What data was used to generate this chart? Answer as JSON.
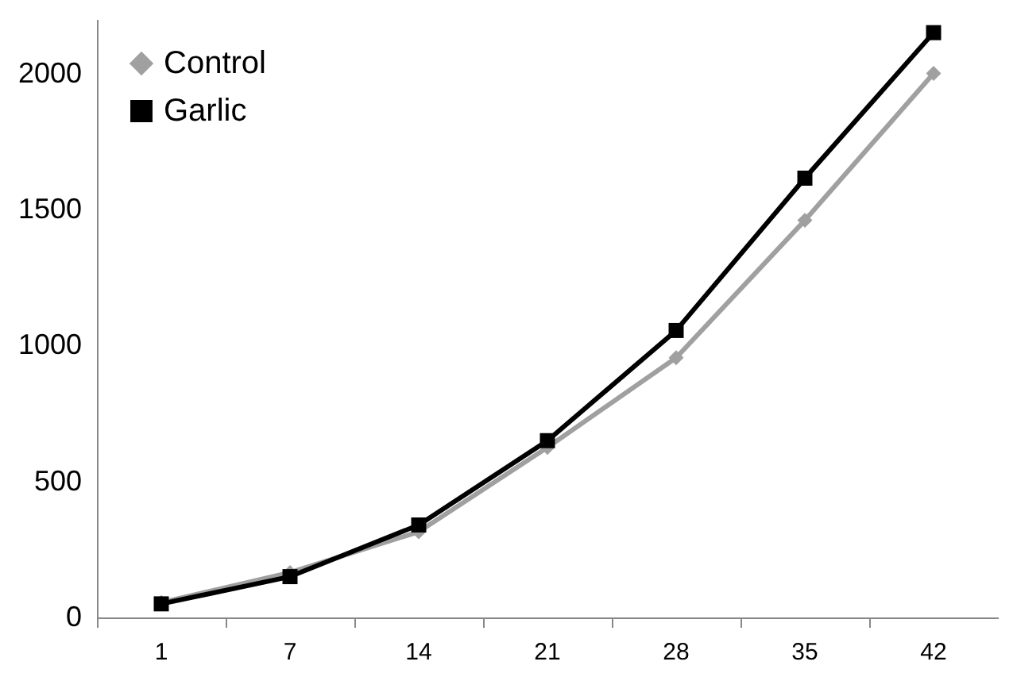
{
  "chart_data": {
    "type": "line",
    "categories": [
      "1",
      "7",
      "14",
      "21",
      "28",
      "35",
      "42"
    ],
    "series": [
      {
        "name": "Control",
        "color": "#a0a0a0",
        "marker": "diamond",
        "values": [
          55,
          165,
          315,
          625,
          955,
          1460,
          2000
        ]
      },
      {
        "name": "Garlic",
        "color": "#000000",
        "marker": "square",
        "values": [
          50,
          150,
          340,
          650,
          1055,
          1615,
          2150
        ]
      }
    ],
    "ylim": [
      0,
      2200
    ],
    "yticks": [
      0,
      500,
      1000,
      1500,
      2000
    ],
    "grid": false,
    "legend": "top left",
    "line_style": "solid"
  }
}
